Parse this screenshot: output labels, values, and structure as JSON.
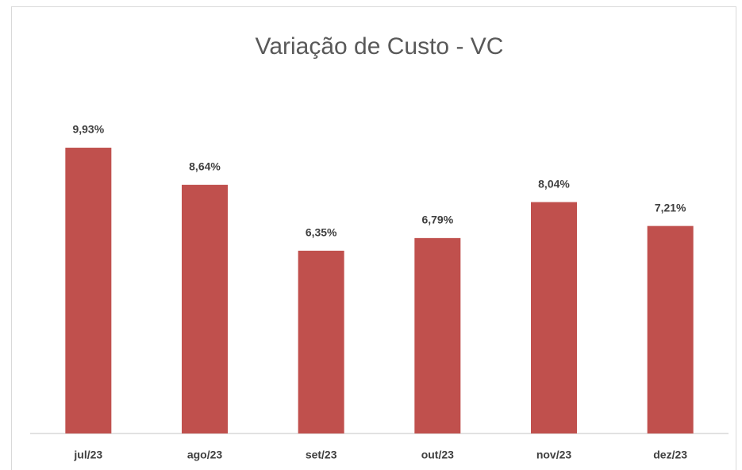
{
  "chart_data": {
    "type": "bar",
    "title": "Variação de Custo - VC",
    "categories": [
      "jul/23",
      "ago/23",
      "set/23",
      "out/23",
      "nov/23",
      "dez/23"
    ],
    "values": [
      9.93,
      8.64,
      6.35,
      6.79,
      8.04,
      7.21
    ],
    "value_labels": [
      "9,93%",
      "8,64%",
      "6,35%",
      "6,79%",
      "8,04%",
      "7,21%"
    ],
    "color": "#c0504d",
    "ylim": [
      0,
      12
    ]
  }
}
